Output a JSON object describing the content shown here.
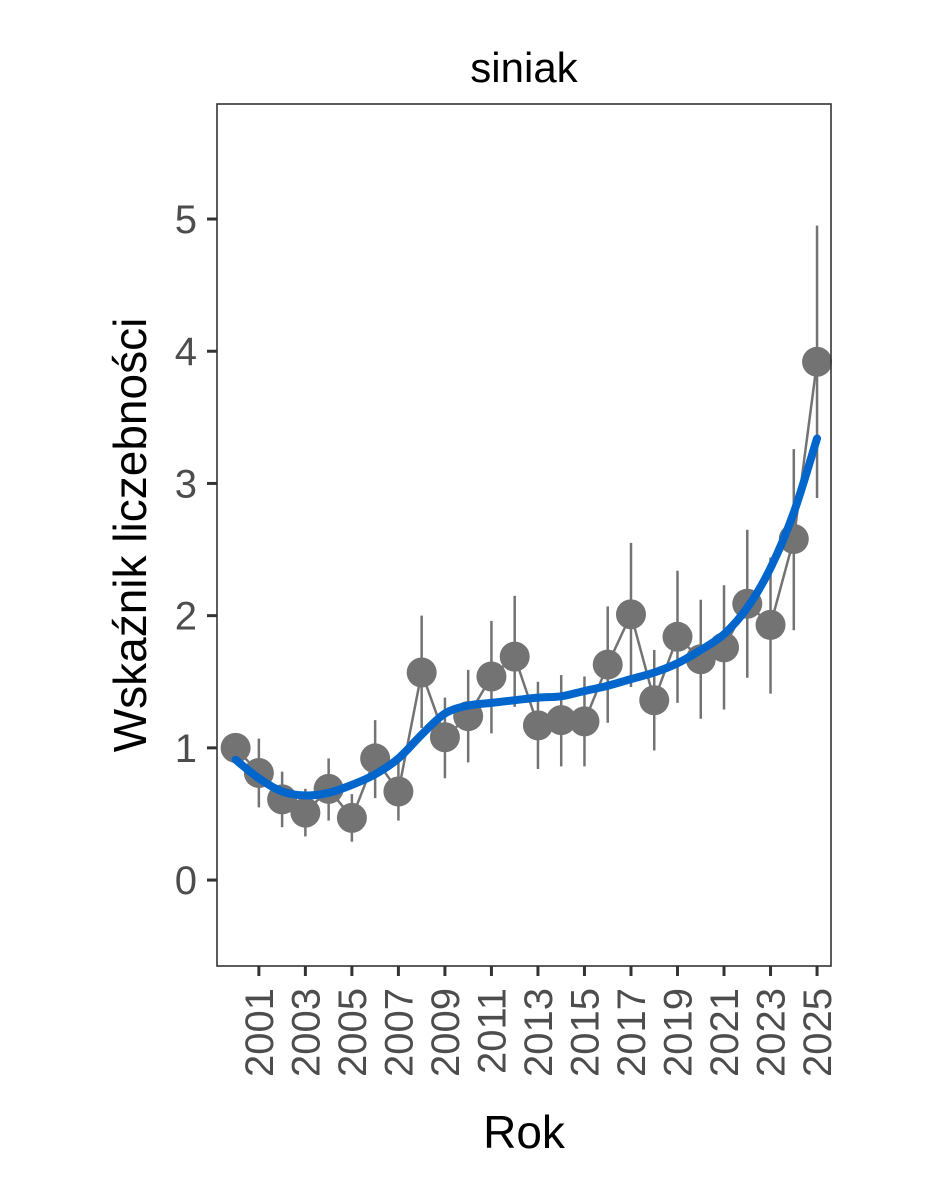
{
  "chart_data": {
    "type": "line",
    "title": "siniak",
    "xlabel": "Rok",
    "ylabel": "Wskaźnik liczebności",
    "xlim": [
      1999.2,
      2025.6
    ],
    "ylim": [
      -0.65,
      5.87
    ],
    "x_ticks": [
      2001,
      2003,
      2005,
      2007,
      2009,
      2011,
      2013,
      2015,
      2017,
      2019,
      2021,
      2023,
      2025
    ],
    "y_ticks": [
      0,
      1,
      2,
      3,
      4,
      5
    ],
    "grid": false,
    "legend": "none",
    "colors": {
      "points": "#737373",
      "trend": "#0066cc",
      "axis": "#333333"
    },
    "series": [
      {
        "type": "points-with-error-bars",
        "x": [
          2000,
          2001,
          2002,
          2003,
          2004,
          2005,
          2006,
          2007,
          2008,
          2009,
          2010,
          2011,
          2012,
          2013,
          2014,
          2015,
          2016,
          2017,
          2018,
          2019,
          2020,
          2021,
          2022,
          2023,
          2024,
          2025
        ],
        "y": [
          1.0,
          0.81,
          0.61,
          0.51,
          0.69,
          0.47,
          0.92,
          0.67,
          1.57,
          1.08,
          1.24,
          1.54,
          1.69,
          1.17,
          1.21,
          1.2,
          1.63,
          2.01,
          1.36,
          1.84,
          1.67,
          1.76,
          2.09,
          1.93,
          2.58,
          3.92
        ],
        "lower": [
          1.0,
          0.55,
          0.4,
          0.33,
          0.45,
          0.29,
          0.62,
          0.45,
          1.15,
          0.77,
          0.89,
          1.11,
          1.31,
          0.84,
          0.86,
          0.86,
          1.19,
          1.46,
          0.98,
          1.34,
          1.22,
          1.29,
          1.53,
          1.41,
          1.89,
          2.89
        ],
        "upper": [
          1.0,
          1.07,
          0.82,
          0.69,
          0.92,
          0.65,
          1.21,
          0.89,
          2.0,
          1.38,
          1.59,
          1.96,
          2.15,
          1.5,
          1.55,
          1.54,
          2.07,
          2.55,
          1.74,
          2.34,
          2.12,
          2.23,
          2.65,
          2.44,
          3.26,
          4.95
        ]
      },
      {
        "type": "trend",
        "x": [
          2000,
          2001,
          2002,
          2003,
          2004,
          2005,
          2006,
          2007,
          2008,
          2009,
          2010,
          2011,
          2012,
          2013,
          2014,
          2015,
          2016,
          2017,
          2018,
          2019,
          2020,
          2021,
          2022,
          2023,
          2024,
          2025
        ],
        "y": [
          0.91,
          0.77,
          0.67,
          0.64,
          0.66,
          0.72,
          0.8,
          0.92,
          1.1,
          1.26,
          1.32,
          1.34,
          1.36,
          1.38,
          1.39,
          1.43,
          1.47,
          1.52,
          1.57,
          1.64,
          1.74,
          1.86,
          2.06,
          2.36,
          2.78,
          3.34
        ]
      }
    ]
  }
}
